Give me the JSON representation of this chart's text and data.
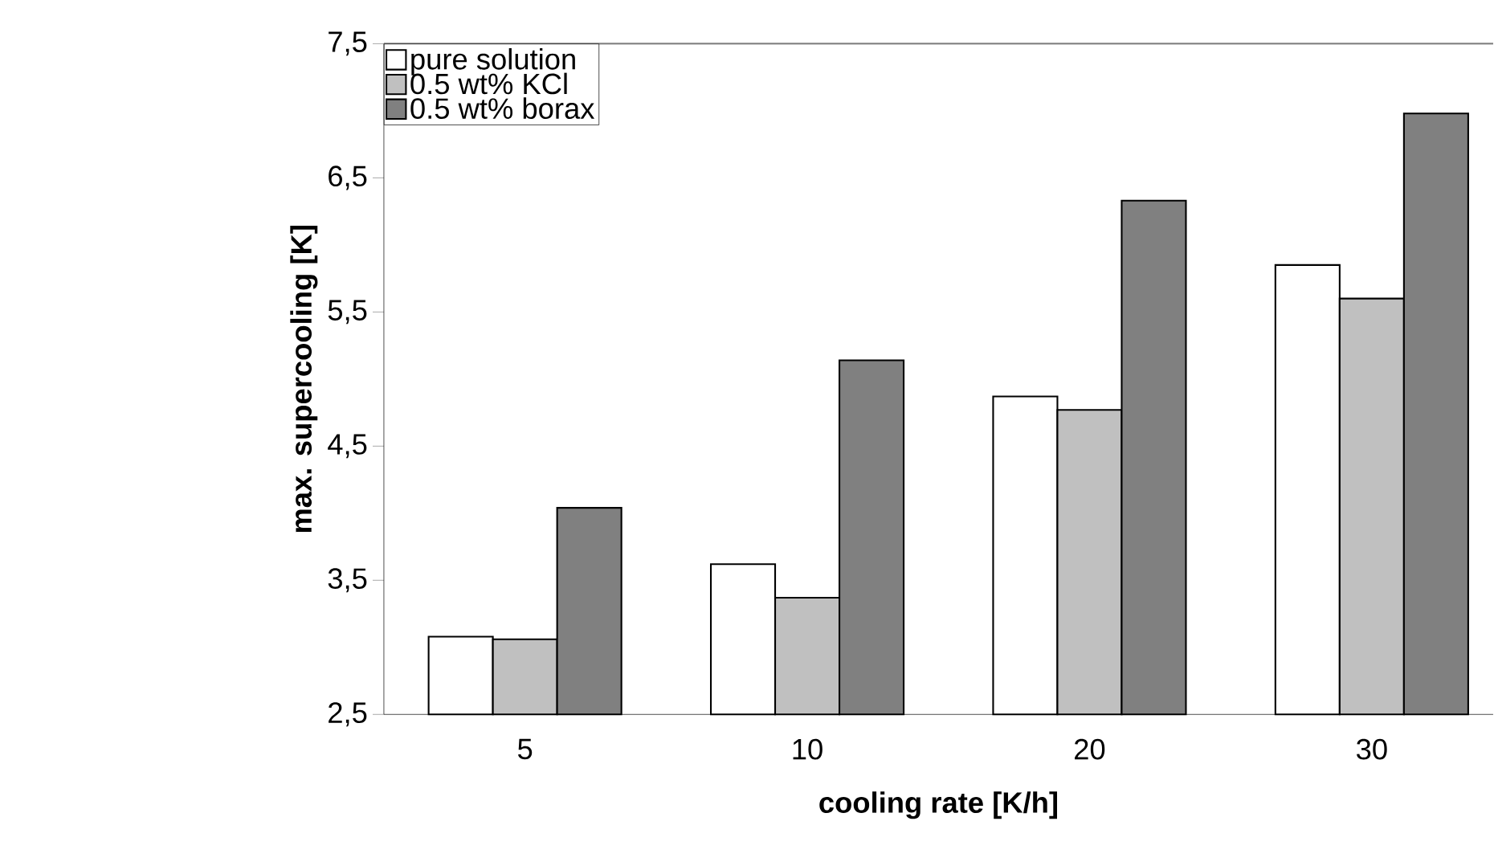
{
  "chart_data": {
    "type": "bar",
    "xlabel": "cooling rate [K/h]",
    "ylabel": "max. supercooling [K]",
    "categories": [
      "5",
      "10",
      "20",
      "30"
    ],
    "series": [
      {
        "name": "pure solution",
        "color": "#ffffff",
        "values": [
          3.08,
          3.62,
          4.87,
          5.85
        ]
      },
      {
        "name": "0.5 wt% KCl",
        "color": "#c0c0c0",
        "values": [
          3.06,
          3.37,
          4.77,
          5.6
        ]
      },
      {
        "name": "0.5 wt% borax",
        "color": "#808080",
        "values": [
          4.04,
          5.14,
          6.33,
          6.98
        ]
      }
    ],
    "ylim": [
      2.5,
      7.5
    ],
    "yticks": [
      {
        "value": 2.5,
        "label": "2,5"
      },
      {
        "value": 3.5,
        "label": "3,5"
      },
      {
        "value": 4.5,
        "label": "4,5"
      },
      {
        "value": 5.5,
        "label": "5,5"
      },
      {
        "value": 6.5,
        "label": "6,5"
      },
      {
        "value": 7.5,
        "label": "7,5"
      }
    ],
    "legend": "top left",
    "grid": false
  }
}
